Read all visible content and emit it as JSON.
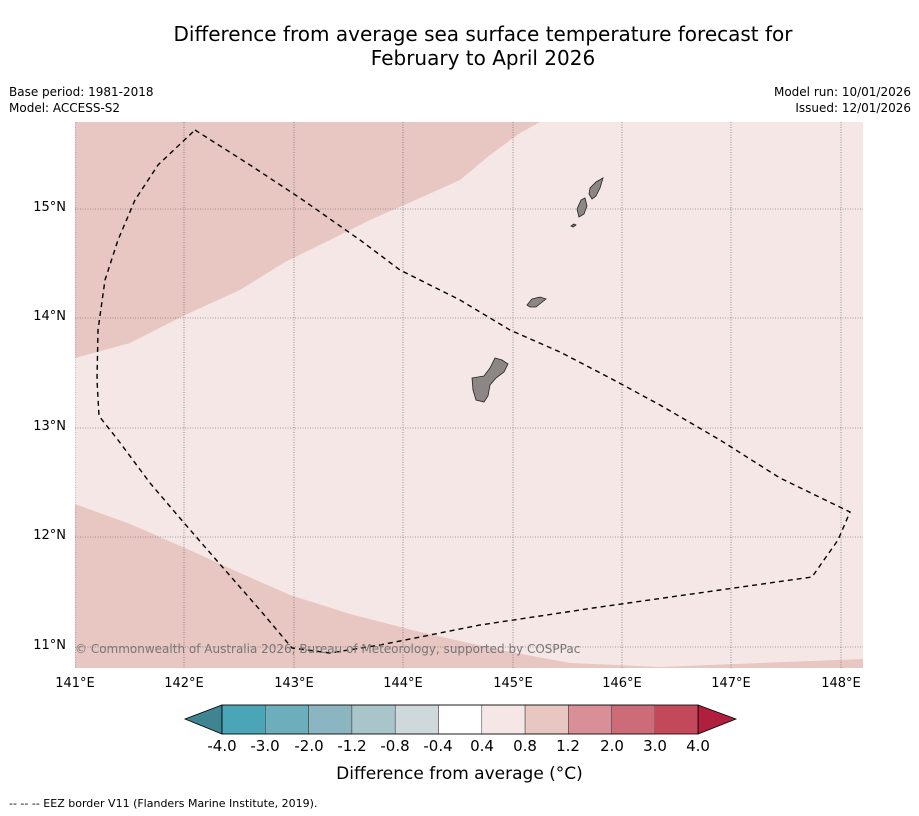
{
  "header": {
    "title_line1": "Difference from average sea surface temperature forecast for",
    "title_line2": "February to April 2026",
    "base_period": "Base period: 1981-2018",
    "model": "Model: ACCESS-S2",
    "model_run": "Model run: 10/01/2026",
    "issued": "Issued: 12/01/2026"
  },
  "map": {
    "latitude_labels": [
      "15°N",
      "14°N",
      "13°N",
      "12°N",
      "11°N"
    ],
    "longitude_labels": [
      "141°E",
      "142°E",
      "143°E",
      "144°E",
      "145°E",
      "146°E",
      "147°E",
      "148°E"
    ],
    "copyright": "© Commonwealth of Australia 2026, Bureau of Meteorology, supported by COSPPac",
    "fill_colors": {
      "anomaly_0_4_to_0_8": "#f5e7e6",
      "anomaly_0_8_to_1_2": "#e8c6c2",
      "land": "#8c8684"
    }
  },
  "colorbar": {
    "ticks": [
      "-4.0",
      "-3.0",
      "-2.0",
      "-1.2",
      "-0.8",
      "-0.4",
      "0.4",
      "0.8",
      "1.2",
      "2.0",
      "3.0",
      "4.0"
    ],
    "colors": [
      "#3f8591",
      "#4aa6b6",
      "#6daebd",
      "#8ab5c1",
      "#a8c6ca",
      "#cfd8da",
      "#ffffff",
      "#f5e7e6",
      "#e8c6c2",
      "#d88f98",
      "#ce6b78",
      "#c3485a",
      "#b0203e"
    ],
    "label": "Difference from average (°C)"
  },
  "footnote": "--  --  -- EEZ border V11 (Flanders Marine Institute, 2019)."
}
